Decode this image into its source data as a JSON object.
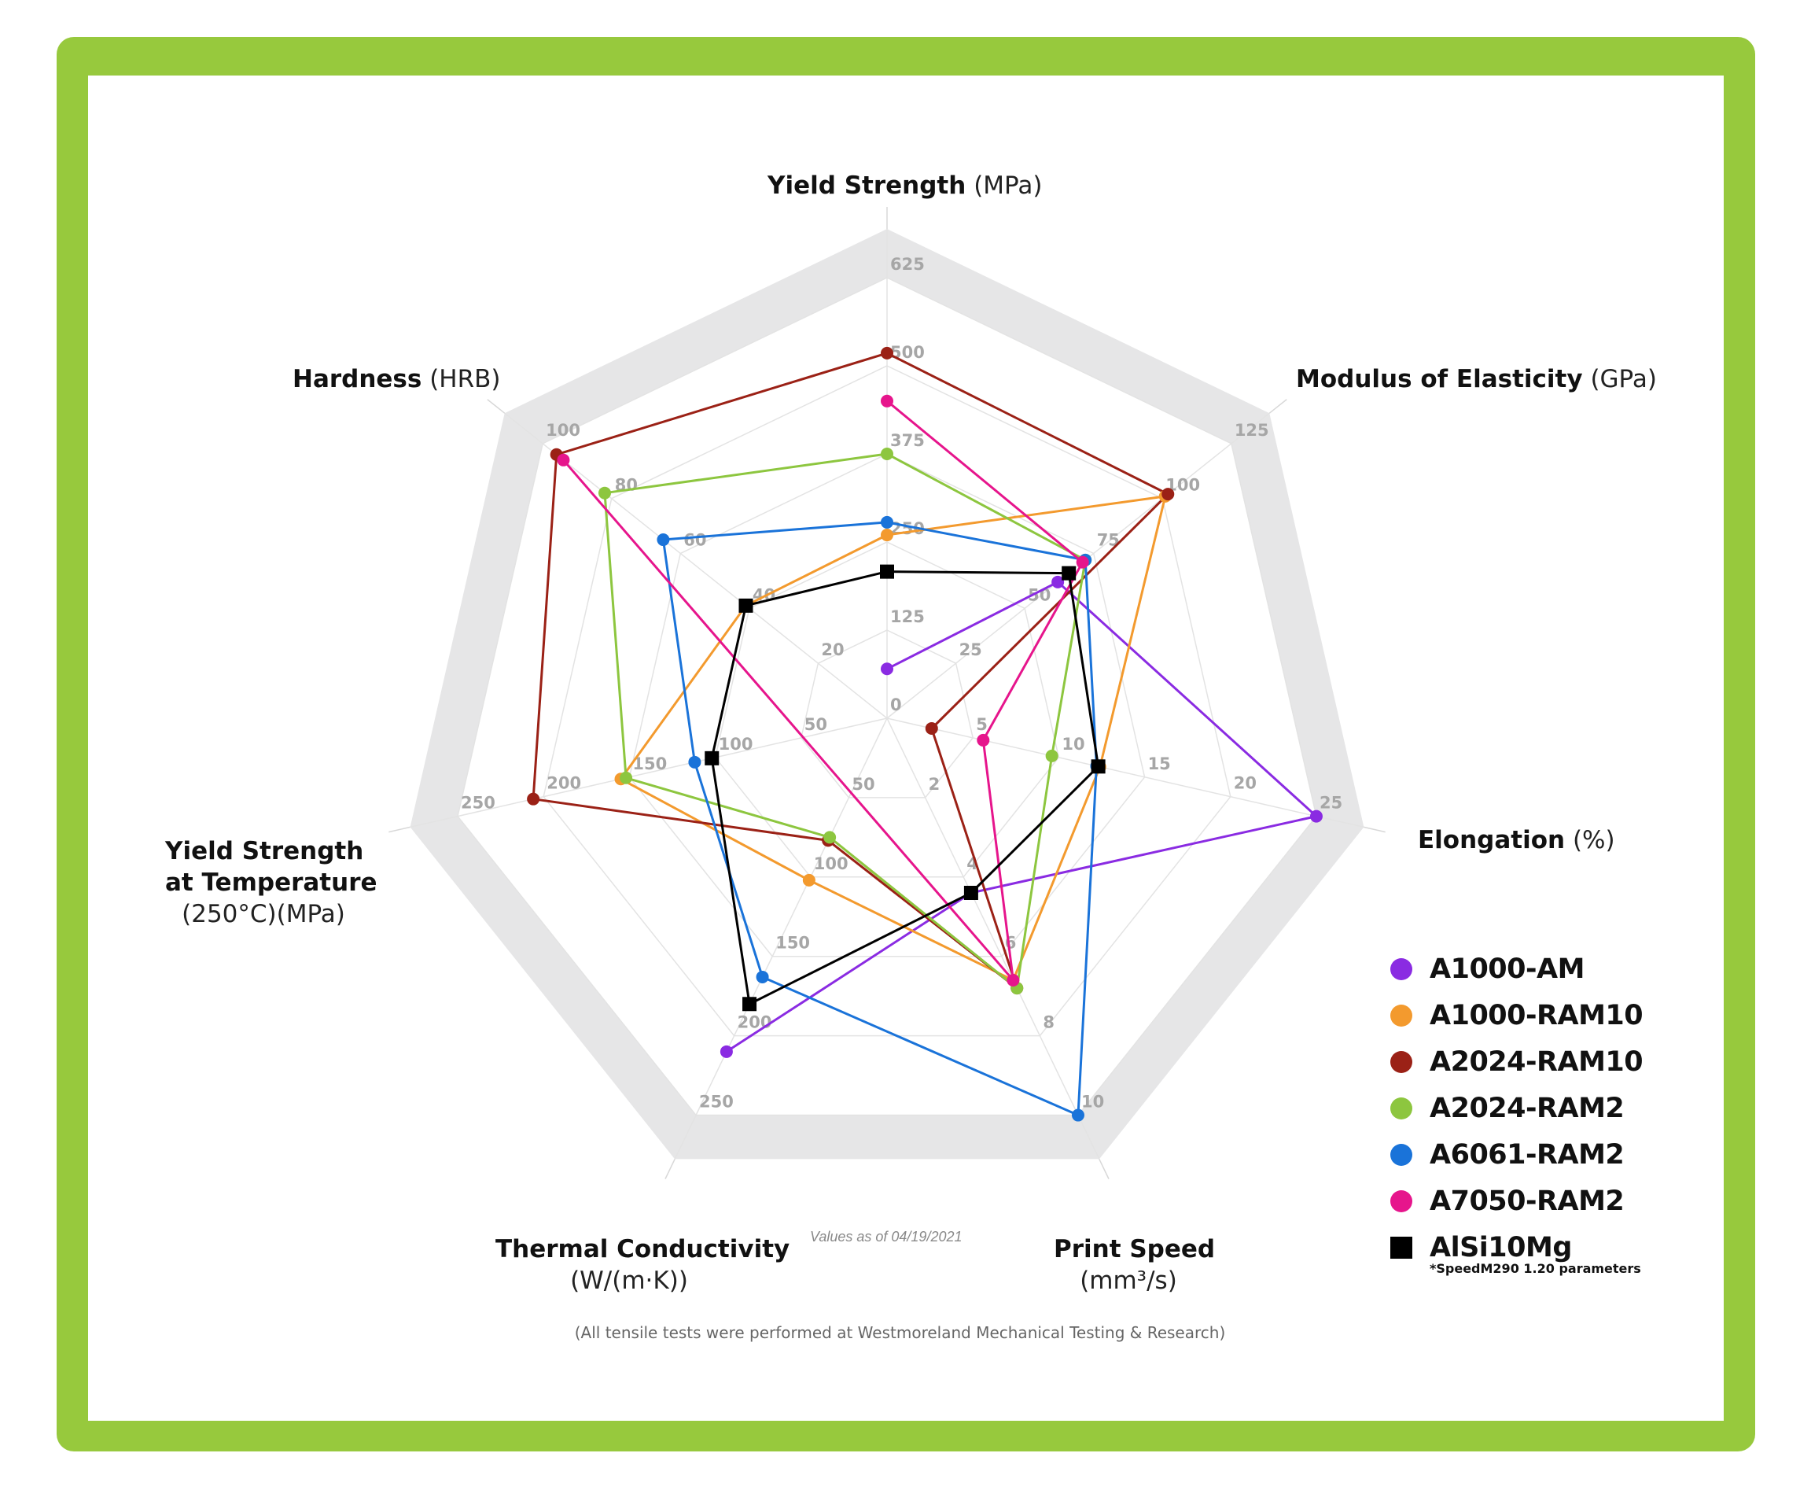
{
  "chart_data": {
    "type": "radar",
    "axes": [
      {
        "name": "Yield Strength",
        "unit": "(MPa)",
        "ticks": [
          "0",
          "125",
          "250",
          "375",
          "500",
          "625"
        ],
        "max": 625
      },
      {
        "name": "Modulus of Elasticity",
        "unit": "(GPa)",
        "ticks": [
          "25",
          "50",
          "75",
          "100",
          "125"
        ],
        "max": 125
      },
      {
        "name": "Elongation",
        "unit": "(%)",
        "ticks": [
          "5",
          "10",
          "15",
          "20",
          "25"
        ],
        "max": 25
      },
      {
        "name": "Print Speed",
        "unit": "(mm³/s)",
        "ticks": [
          "2",
          "4",
          "6",
          "8",
          "10"
        ],
        "max": 10
      },
      {
        "name": "Thermal Conductivity",
        "unit": "(W/(m·K))",
        "ticks": [
          "50",
          "100",
          "150",
          "200",
          "250"
        ],
        "max": 250
      },
      {
        "name": "Yield Strength at Temperature",
        "unit": "(250°C)(MPa)",
        "ticks": [
          "50",
          "100",
          "150",
          "200",
          "250"
        ],
        "max": 250
      },
      {
        "name": "Hardness",
        "unit": "(HRB)",
        "ticks": [
          "20",
          "40",
          "60",
          "80",
          "100"
        ],
        "max": 100
      }
    ],
    "series": [
      {
        "name": "A1000-AM",
        "color": "#8a2be2",
        "marker": "circle",
        "values": [
          70,
          62,
          25,
          4.4,
          210,
          null,
          null
        ]
      },
      {
        "name": "A1000-RAM10",
        "color": "#f39a2e",
        "marker": "circle",
        "values": [
          260,
          101,
          12.4,
          6.6,
          102,
          155,
          41
        ]
      },
      {
        "name": "A2024-RAM10",
        "color": "#9b2116",
        "marker": "circle",
        "values": [
          518,
          102,
          2.6,
          6.8,
          77,
          206,
          96
        ]
      },
      {
        "name": "A2024-RAM2",
        "color": "#8dc63f",
        "marker": "circle",
        "values": [
          375,
          72,
          9.6,
          6.8,
          75,
          152,
          82
        ]
      },
      {
        "name": "A6061-RAM2",
        "color": "#1a73d9",
        "marker": "circle",
        "values": [
          278,
          72,
          12.2,
          10,
          163,
          112,
          65
        ]
      },
      {
        "name": "A7050-RAM2",
        "color": "#e6158c",
        "marker": "circle",
        "values": [
          450,
          71,
          5.6,
          6.6,
          null,
          null,
          94
        ]
      },
      {
        "name": "AlSi10Mg",
        "color": "#000000",
        "marker": "square",
        "values": [
          208,
          66,
          12.3,
          4.4,
          180,
          102,
          41
        ]
      }
    ]
  },
  "legend": {
    "items": [
      "A1000-AM",
      "A1000-RAM10",
      "A2024-RAM10",
      "A2024-RAM2",
      "A6061-RAM2",
      "A7050-RAM2",
      "AlSi10Mg"
    ],
    "note": "*SpeedM290 1.20 parameters"
  },
  "notes": {
    "values_as_of": "Values as of 04/19/2021",
    "footnote": "(All tensile tests were performed at Westmoreland Mechanical Testing & Research)"
  },
  "titles": {
    "yield_strength": {
      "name": "Yield Strength",
      "unit": "(MPa)"
    },
    "modulus": {
      "name": "Modulus of Elasticity",
      "unit": "(GPa)"
    },
    "elongation": {
      "name": "Elongation",
      "unit": "(%)"
    },
    "print_speed": {
      "name": "Print Speed",
      "unit": "(mm³/s)"
    },
    "thermal": {
      "name": "Thermal Conductivity",
      "unit": "(W/(m·K))"
    },
    "yst_line1": "Yield Strength",
    "yst_line2": "at Temperature",
    "yst_unit": "(250°C)(MPa)",
    "hardness": {
      "name": "Hardness",
      "unit": "(HRB)"
    }
  }
}
